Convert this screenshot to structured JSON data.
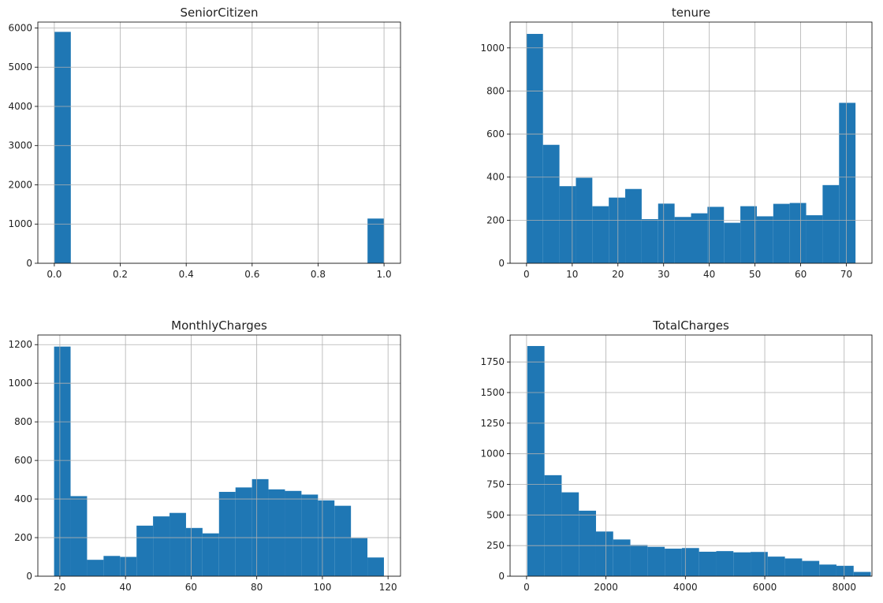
{
  "chart_data": [
    {
      "type": "bar",
      "title": "SeniorCitizen",
      "xlabel": "",
      "ylabel": "",
      "bins": 20,
      "xlim": [
        -0.05,
        1.05
      ],
      "ylim": [
        0,
        6150
      ],
      "xticks": [
        0.0,
        0.2,
        0.4,
        0.6,
        0.8,
        1.0
      ],
      "xtick_labels": [
        "0.0",
        "0.2",
        "0.4",
        "0.6",
        "0.8",
        "1.0"
      ],
      "yticks": [
        0,
        1000,
        2000,
        3000,
        4000,
        5000,
        6000
      ],
      "ytick_labels": [
        "0",
        "1000",
        "2000",
        "3000",
        "4000",
        "5000",
        "6000"
      ],
      "bar_edges": [
        0.0,
        0.05,
        0.1,
        0.15,
        0.2,
        0.25,
        0.3,
        0.35,
        0.4,
        0.45,
        0.5,
        0.55,
        0.6,
        0.65,
        0.7,
        0.75,
        0.8,
        0.85,
        0.9,
        0.95,
        1.0
      ],
      "values": [
        5900,
        0,
        0,
        0,
        0,
        0,
        0,
        0,
        0,
        0,
        0,
        0,
        0,
        0,
        0,
        0,
        0,
        0,
        0,
        1140
      ],
      "grid": true,
      "color": "#1f77b4"
    },
    {
      "type": "bar",
      "title": "tenure",
      "xlabel": "",
      "ylabel": "",
      "bins": 20,
      "xlim": [
        -3.6,
        75.6
      ],
      "ylim": [
        0,
        1120
      ],
      "xticks": [
        0,
        10,
        20,
        30,
        40,
        50,
        60,
        70
      ],
      "xtick_labels": [
        "0",
        "10",
        "20",
        "30",
        "40",
        "50",
        "60",
        "70"
      ],
      "yticks": [
        0,
        200,
        400,
        600,
        800,
        1000
      ],
      "ytick_labels": [
        "0",
        "200",
        "400",
        "600",
        "800",
        "1000"
      ],
      "bar_edges": [
        0,
        3.6,
        7.2,
        10.8,
        14.4,
        18,
        21.6,
        25.2,
        28.8,
        32.4,
        36,
        39.6,
        43.2,
        46.8,
        50.4,
        54,
        57.6,
        61.2,
        64.8,
        68.4,
        72
      ],
      "values": [
        1065,
        550,
        358,
        397,
        265,
        305,
        345,
        205,
        277,
        215,
        232,
        262,
        188,
        265,
        218,
        276,
        280,
        223,
        363,
        745
      ],
      "grid": true,
      "color": "#1f77b4"
    },
    {
      "type": "bar",
      "title": "MonthlyCharges",
      "xlabel": "",
      "ylabel": "",
      "bins": 20,
      "xlim": [
        13.3,
        123.8
      ],
      "ylim": [
        0,
        1250
      ],
      "xticks": [
        20,
        40,
        60,
        80,
        100,
        120
      ],
      "xtick_labels": [
        "20",
        "40",
        "60",
        "80",
        "100",
        "120"
      ],
      "yticks": [
        0,
        200,
        400,
        600,
        800,
        1000,
        1200
      ],
      "ytick_labels": [
        "0",
        "200",
        "400",
        "600",
        "800",
        "1000",
        "1200"
      ],
      "bar_edges": [
        18.25,
        23.275,
        28.3,
        33.325,
        38.35,
        43.375,
        48.4,
        53.425,
        58.45,
        63.475,
        68.5,
        73.525,
        78.55,
        83.575,
        88.6,
        93.625,
        98.65,
        103.675,
        108.7,
        113.725,
        118.75
      ],
      "values": [
        1190,
        415,
        85,
        105,
        100,
        262,
        310,
        328,
        250,
        222,
        437,
        460,
        503,
        450,
        442,
        423,
        393,
        365,
        197,
        97
      ],
      "grid": true,
      "color": "#1f77b4"
    },
    {
      "type": "bar",
      "title": "TotalCharges",
      "xlabel": "",
      "ylabel": "",
      "bins": 20,
      "xlim": [
        -415,
        8700
      ],
      "ylim": [
        0,
        1970
      ],
      "xticks": [
        0,
        2000,
        4000,
        6000,
        8000
      ],
      "xtick_labels": [
        "0",
        "2000",
        "4000",
        "6000",
        "8000"
      ],
      "yticks": [
        0,
        250,
        500,
        750,
        1000,
        1250,
        1500,
        1750
      ],
      "ytick_labels": [
        "0",
        "250",
        "500",
        "750",
        "1000",
        "1250",
        "1500",
        "1750"
      ],
      "bar_edges": [
        18.8,
        451.4,
        884.0,
        1316.6,
        1749.2,
        2181.8,
        2614.4,
        3047.0,
        3479.6,
        3912.2,
        4344.8,
        4777.4,
        5210.0,
        5642.6,
        6075.2,
        6507.8,
        6940.4,
        7373.0,
        7805.6,
        8238.2,
        8670.8
      ],
      "values": [
        1880,
        825,
        685,
        535,
        365,
        300,
        255,
        240,
        225,
        230,
        200,
        205,
        195,
        198,
        160,
        145,
        125,
        95,
        85,
        35
      ],
      "grid": true,
      "color": "#1f77b4"
    }
  ]
}
